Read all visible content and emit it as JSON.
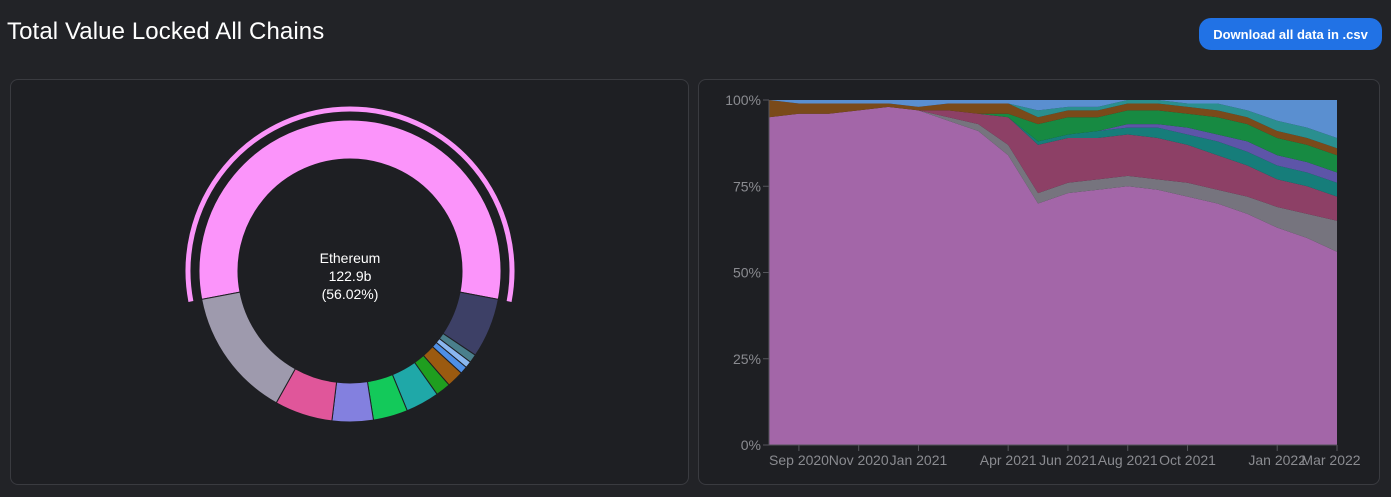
{
  "header": {
    "title": "Total Value Locked All Chains",
    "download_label": "Download all data in .csv"
  },
  "chart_data": [
    {
      "type": "pie",
      "active": {
        "name": "Ethereum",
        "value": "122.9b",
        "percent": "(56.02%)"
      },
      "slices": [
        {
          "name": "Ethereum",
          "share": 56.02,
          "color": "#fb94fa"
        },
        {
          "share": 6.4,
          "color": "#3d4066"
        },
        {
          "share": 0.9,
          "color": "#4a7f8c"
        },
        {
          "share": 0.7,
          "color": "#8ab7f0"
        },
        {
          "share": 0.8,
          "color": "#4e8fe6"
        },
        {
          "share": 1.8,
          "color": "#9b5a10"
        },
        {
          "share": 1.6,
          "color": "#1f9e1f"
        },
        {
          "share": 3.6,
          "color": "#1fa8a8"
        },
        {
          "share": 3.7,
          "color": "#13c95a"
        },
        {
          "share": 4.4,
          "color": "#8380df"
        },
        {
          "share": 6.2,
          "color": "#e0569a"
        },
        {
          "share": 13.87,
          "color": "#9e9aad"
        }
      ]
    },
    {
      "type": "area",
      "stacked_percent": true,
      "ylim": [
        0,
        100
      ],
      "y_ticks": [
        "0%",
        "25%",
        "50%",
        "75%",
        "100%"
      ],
      "x_ticks": [
        "Sep 2020",
        "Nov 2020",
        "Jan 2021",
        "Apr 2021",
        "Jun 2021",
        "Aug 2021",
        "Oct 2021",
        "Jan 2022",
        "Mar 2022"
      ],
      "x": [
        "2020-08",
        "2020-09",
        "2020-10",
        "2020-11",
        "2020-12",
        "2021-01",
        "2021-02",
        "2021-03",
        "2021-04",
        "2021-05",
        "2021-06",
        "2021-07",
        "2021-08",
        "2021-09",
        "2021-10",
        "2021-11",
        "2021-12",
        "2022-01",
        "2022-02",
        "2022-03"
      ],
      "series": [
        {
          "color": "#a366a8",
          "values": [
            95,
            96,
            96,
            97,
            98,
            97,
            94,
            91,
            84,
            70,
            73,
            74,
            75,
            74,
            72,
            70,
            67,
            63,
            60,
            56
          ]
        },
        {
          "color": "#76747e",
          "values": [
            0,
            0,
            0,
            0,
            0,
            0,
            1,
            2,
            3,
            3,
            3,
            3,
            3,
            3,
            4,
            4,
            5,
            6,
            7,
            9
          ]
        },
        {
          "color": "#8d4066",
          "values": [
            0,
            0,
            0,
            0,
            0,
            0,
            2,
            3,
            8,
            14,
            13,
            12,
            12,
            12,
            11,
            10,
            9,
            8,
            8,
            7
          ]
        },
        {
          "color": "#167d7a",
          "values": [
            0,
            0,
            0,
            0,
            0,
            0,
            0,
            0,
            0,
            1,
            1,
            2,
            2,
            3,
            3,
            4,
            4,
            4,
            4,
            4
          ]
        },
        {
          "color": "#5d55a8",
          "values": [
            0,
            0,
            0,
            0,
            0,
            0,
            0,
            0,
            0,
            0,
            0,
            0,
            1,
            1,
            2,
            2,
            3,
            3,
            3,
            3
          ]
        },
        {
          "color": "#178a42",
          "values": [
            0,
            0,
            0,
            0,
            0,
            0,
            0,
            0,
            1,
            5,
            5,
            4,
            4,
            4,
            4,
            5,
            5,
            5,
            5,
            5
          ]
        },
        {
          "color": "#7a4a1a",
          "values": [
            5,
            3,
            3,
            2,
            1,
            1,
            2,
            3,
            3,
            2,
            2,
            2,
            2,
            2,
            2,
            2,
            2,
            2,
            2,
            2
          ]
        },
        {
          "color": "#2a8f8f",
          "values": [
            0,
            0,
            0,
            0,
            0,
            0,
            0,
            0,
            0,
            2,
            1,
            1,
            1,
            1,
            1,
            2,
            2,
            3,
            3,
            3
          ]
        },
        {
          "color": "#5a8fd0",
          "values": [
            0,
            1,
            1,
            1,
            1,
            2,
            1,
            1,
            1,
            3,
            2,
            2,
            0,
            0,
            1,
            1,
            3,
            6,
            8,
            11
          ]
        }
      ]
    }
  ]
}
